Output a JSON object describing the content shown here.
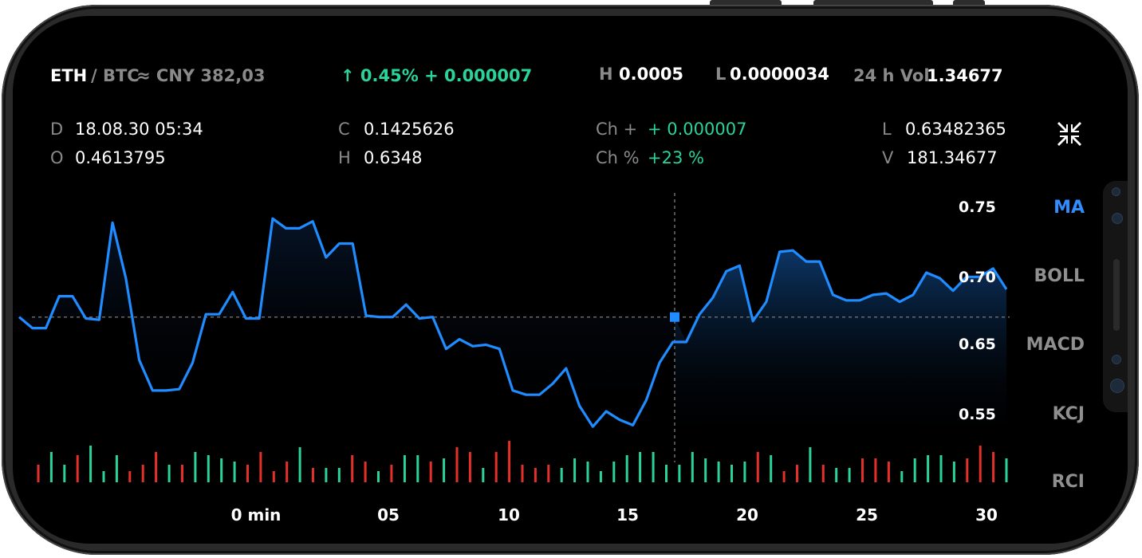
{
  "header": {
    "pair_base": "ETH",
    "pair_quote": "/ BTC",
    "approx": "≈ CNY 382,03",
    "change": "↑ 0.45% + 0.000007",
    "high_label": "H",
    "high_value": "0.0005",
    "low_label": "L",
    "low_value": "0.0000034",
    "vol_label": "24 h Vol",
    "vol_value": "1.34677"
  },
  "stats": {
    "d_label": "D",
    "d_value": "18.08.30 05:34",
    "o_label": "O",
    "o_value": "0.4613795",
    "c_label": "C",
    "c_value": "0.1425626",
    "h_label": "H",
    "h_value": "0.6348",
    "ch_label": "Ch +",
    "ch_value": "+ 0.000007",
    "chp_label": "Ch %",
    "chp_value": "+23 %",
    "l_label": "L",
    "l_value": "0.63482365",
    "v_label": "V",
    "v_value": "181.34677"
  },
  "indicators": [
    "MA",
    "BOLL",
    "MACD",
    "KCJ",
    "RCI"
  ],
  "active_indicator": "MA",
  "colors": {
    "line": "#1f8cff",
    "up": "#2ad39b",
    "down": "#e5302a",
    "label_gray": "#8a8a8a"
  },
  "icons": {
    "collapse": "collapse-arrows-icon"
  },
  "chart_data": {
    "type": "line",
    "y_ticks": [
      "0.75",
      "0.70",
      "0.65",
      "0.55"
    ],
    "x_ticks": [
      "0 min",
      "05",
      "10",
      "15",
      "20",
      "25",
      "30"
    ],
    "crosshair_value": 0.672,
    "series": [
      {
        "values": [
          0.672,
          0.664,
          0.664,
          0.687,
          0.687,
          0.671,
          0.67,
          0.74,
          0.7,
          0.641,
          0.619,
          0.619,
          0.62,
          0.639,
          0.674,
          0.674,
          0.69,
          0.671,
          0.671,
          0.743,
          0.736,
          0.736,
          0.741,
          0.715,
          0.725,
          0.725,
          0.673,
          0.672,
          0.672,
          0.681,
          0.671,
          0.672,
          0.649,
          0.656,
          0.651,
          0.652,
          0.649,
          0.619,
          0.616,
          0.616,
          0.624,
          0.635,
          0.608,
          0.593,
          0.604,
          0.598,
          0.594,
          0.612,
          0.639,
          0.654,
          0.654,
          0.674,
          0.686,
          0.705,
          0.709,
          0.669,
          0.683,
          0.719,
          0.72,
          0.712,
          0.712,
          0.688,
          0.684,
          0.684,
          0.688,
          0.689,
          0.683,
          0.688,
          0.704,
          0.7,
          0.691,
          0.701,
          0.701,
          0.707,
          0.692
        ]
      }
    ],
    "volume_bars": [
      {
        "v": 0.55,
        "d": "down"
      },
      {
        "v": 0.95,
        "d": "up"
      },
      {
        "v": 0.55,
        "d": "up"
      },
      {
        "v": 0.85,
        "d": "down"
      },
      {
        "v": 1.15,
        "d": "up"
      },
      {
        "v": 0.35,
        "d": "up"
      },
      {
        "v": 0.85,
        "d": "up"
      },
      {
        "v": 0.35,
        "d": "down"
      },
      {
        "v": 0.55,
        "d": "down"
      },
      {
        "v": 0.95,
        "d": "down"
      },
      {
        "v": 0.55,
        "d": "up"
      },
      {
        "v": 0.55,
        "d": "down"
      },
      {
        "v": 0.95,
        "d": "up"
      },
      {
        "v": 0.85,
        "d": "up"
      },
      {
        "v": 0.75,
        "d": "up"
      },
      {
        "v": 0.65,
        "d": "up"
      },
      {
        "v": 0.55,
        "d": "down"
      },
      {
        "v": 0.95,
        "d": "down"
      },
      {
        "v": 0.35,
        "d": "down"
      },
      {
        "v": 0.65,
        "d": "down"
      },
      {
        "v": 1.1,
        "d": "up"
      },
      {
        "v": 0.45,
        "d": "down"
      },
      {
        "v": 0.45,
        "d": "up"
      },
      {
        "v": 0.45,
        "d": "up"
      },
      {
        "v": 0.85,
        "d": "down"
      },
      {
        "v": 0.65,
        "d": "down"
      },
      {
        "v": 0.35,
        "d": "up"
      },
      {
        "v": 0.55,
        "d": "down"
      },
      {
        "v": 0.85,
        "d": "up"
      },
      {
        "v": 0.85,
        "d": "up"
      },
      {
        "v": 0.65,
        "d": "down"
      },
      {
        "v": 0.75,
        "d": "up"
      },
      {
        "v": 1.1,
        "d": "down"
      },
      {
        "v": 0.95,
        "d": "down"
      },
      {
        "v": 0.45,
        "d": "up"
      },
      {
        "v": 0.95,
        "d": "down"
      },
      {
        "v": 1.3,
        "d": "down"
      },
      {
        "v": 0.55,
        "d": "down"
      },
      {
        "v": 0.45,
        "d": "down"
      },
      {
        "v": 0.55,
        "d": "down"
      },
      {
        "v": 0.45,
        "d": "up"
      },
      {
        "v": 0.75,
        "d": "up"
      },
      {
        "v": 0.65,
        "d": "up"
      },
      {
        "v": 0.35,
        "d": "up"
      },
      {
        "v": 0.65,
        "d": "up"
      },
      {
        "v": 0.85,
        "d": "up"
      },
      {
        "v": 0.95,
        "d": "up"
      },
      {
        "v": 0.95,
        "d": "up"
      },
      {
        "v": 0.55,
        "d": "up"
      },
      {
        "v": 0.55,
        "d": "up"
      },
      {
        "v": 0.95,
        "d": "up"
      },
      {
        "v": 0.75,
        "d": "up"
      },
      {
        "v": 0.65,
        "d": "up"
      },
      {
        "v": 0.55,
        "d": "up"
      },
      {
        "v": 0.65,
        "d": "up"
      },
      {
        "v": 0.95,
        "d": "down"
      },
      {
        "v": 0.85,
        "d": "up"
      },
      {
        "v": 0.35,
        "d": "down"
      },
      {
        "v": 0.55,
        "d": "down"
      },
      {
        "v": 1.1,
        "d": "up"
      },
      {
        "v": 0.55,
        "d": "down"
      },
      {
        "v": 0.45,
        "d": "up"
      },
      {
        "v": 0.45,
        "d": "up"
      },
      {
        "v": 0.75,
        "d": "down"
      },
      {
        "v": 0.75,
        "d": "down"
      },
      {
        "v": 0.65,
        "d": "down"
      },
      {
        "v": 0.35,
        "d": "up"
      },
      {
        "v": 0.75,
        "d": "up"
      },
      {
        "v": 0.85,
        "d": "up"
      },
      {
        "v": 0.85,
        "d": "up"
      },
      {
        "v": 0.65,
        "d": "up"
      },
      {
        "v": 0.75,
        "d": "down"
      },
      {
        "v": 1.15,
        "d": "down"
      },
      {
        "v": 0.95,
        "d": "down"
      },
      {
        "v": 0.75,
        "d": "up"
      }
    ]
  }
}
